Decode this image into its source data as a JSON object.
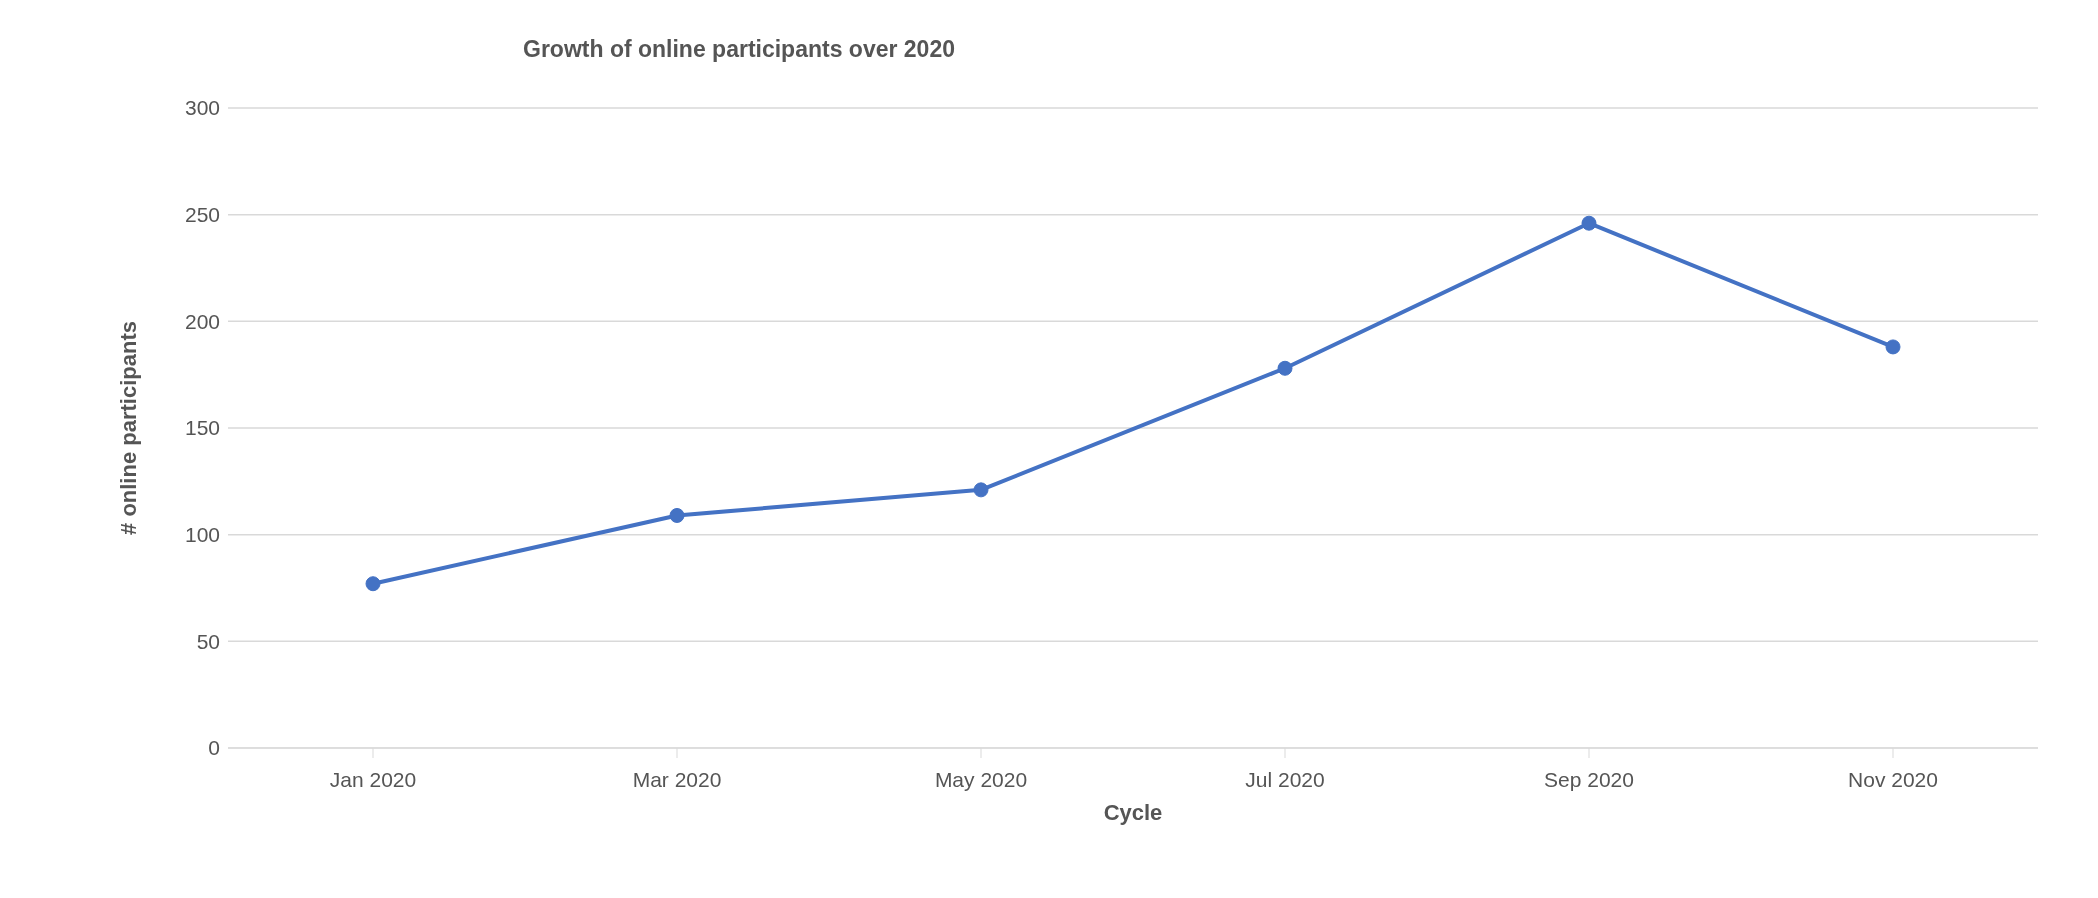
{
  "chart_data": {
    "type": "line",
    "title": "Growth of online participants over 2020",
    "xlabel": "Cycle",
    "ylabel": "# online participants",
    "categories": [
      "Jan 2020",
      "Mar 2020",
      "May 2020",
      "Jul 2020",
      "Sep 2020",
      "Nov 2020"
    ],
    "series": [
      {
        "color": "#4472c4",
        "values": [
          77,
          109,
          121,
          178,
          246,
          188
        ]
      }
    ],
    "ylim": [
      0,
      300
    ],
    "yticks": [
      0,
      50,
      100,
      150,
      200,
      250,
      300
    ],
    "grid": "y",
    "marker": "circle",
    "line_style": "solid"
  }
}
